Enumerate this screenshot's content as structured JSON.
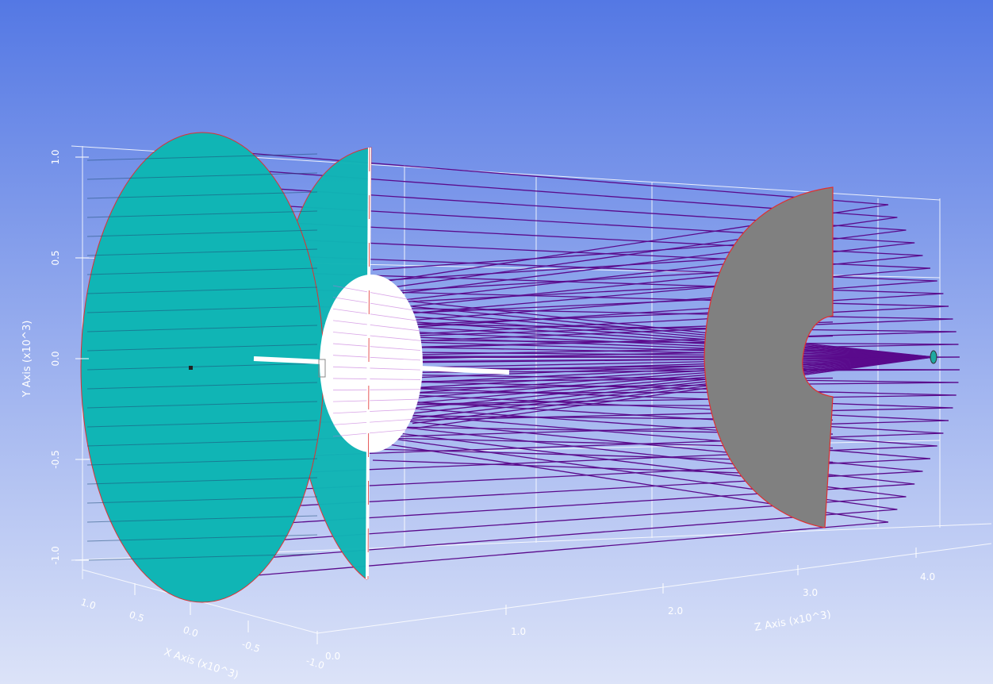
{
  "y_axis": {
    "title": "Y Axis (x10^3)",
    "ticks": [
      "1.0",
      "0.5",
      "0.0",
      "-0.5",
      "-1.0"
    ]
  },
  "x_axis": {
    "title": "X Axis (x10^3)",
    "ticks": [
      "1.0",
      "0.5",
      "0.0",
      "-0.5",
      "-1.0"
    ]
  },
  "z_axis": {
    "title": "Z Axis (x10^3)",
    "ticks": [
      "0.0",
      "1.0",
      "2.0",
      "3.0",
      "4.0"
    ]
  },
  "colors": {
    "background_top": "#5478e4",
    "background_bottom": "#dce3f8",
    "primary_mirror": "#10b5b5",
    "secondary_mirror": "#808080",
    "obstruction": "#ffffff",
    "rays": "#5a0a8c",
    "outline": "#e03030",
    "grid": "#ffffff"
  }
}
